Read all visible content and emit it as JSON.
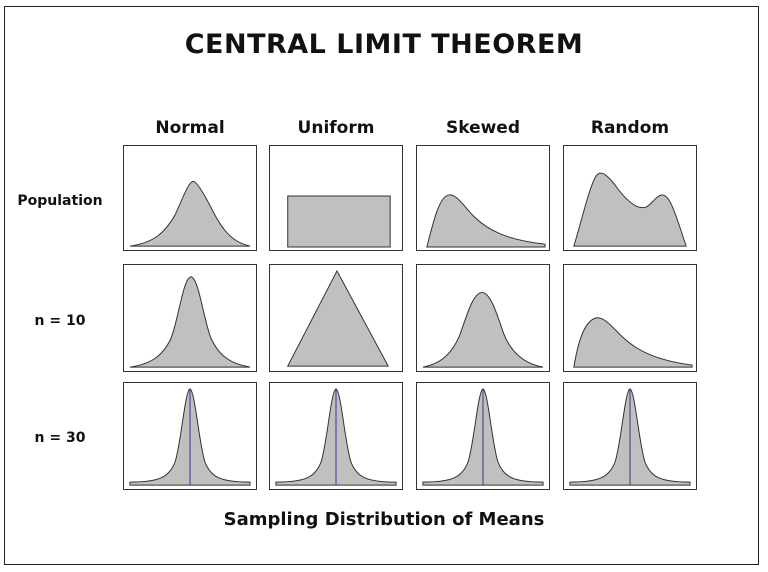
{
  "title": "CENTRAL LIMIT THEOREM",
  "columns": [
    {
      "label": "Normal"
    },
    {
      "label": "Uniform"
    },
    {
      "label": "Skewed"
    },
    {
      "label": "Random"
    }
  ],
  "rows": [
    {
      "label": "Population"
    },
    {
      "label": "n = 10"
    },
    {
      "label": "n = 30"
    }
  ],
  "footer": "Sampling Distribution of Means",
  "colors": {
    "fill": "#c0c0c0",
    "outline": "#333333",
    "mean_line": "#2b3a8f",
    "border": "#222222"
  },
  "shapes": [
    [
      "normal",
      "rectangle",
      "right-skewed",
      "bimodal"
    ],
    [
      "normal",
      "triangle",
      "normal",
      "right-skewed"
    ],
    [
      "narrow-normal",
      "narrow-normal",
      "narrow-normal",
      "narrow-normal"
    ]
  ]
}
